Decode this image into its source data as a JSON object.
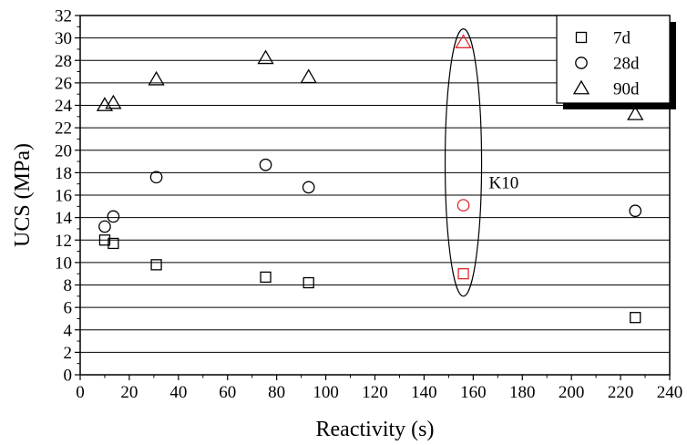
{
  "chart_data": {
    "type": "scatter",
    "xlabel": "Reactivity (s)",
    "ylabel": "UCS (MPa)",
    "xlim": [
      0,
      240
    ],
    "ylim": [
      0,
      32
    ],
    "xticks": [
      0,
      20,
      40,
      60,
      80,
      100,
      120,
      140,
      160,
      180,
      200,
      220,
      240
    ],
    "yticks": [
      0,
      2,
      4,
      6,
      8,
      10,
      12,
      14,
      16,
      18,
      20,
      22,
      24,
      26,
      28,
      30,
      32
    ],
    "grid": "horizontal",
    "legend_position": "top-right",
    "series": [
      {
        "name": "7d",
        "marker": "square",
        "points": [
          [
            10,
            12.0
          ],
          [
            13.5,
            11.7
          ],
          [
            31,
            9.8
          ],
          [
            75.5,
            8.7
          ],
          [
            93,
            8.2
          ],
          [
            156,
            9.0
          ],
          [
            226,
            5.1
          ]
        ]
      },
      {
        "name": "28d",
        "marker": "circle",
        "points": [
          [
            10,
            13.2
          ],
          [
            13.5,
            14.1
          ],
          [
            31,
            17.6
          ],
          [
            75.5,
            18.7
          ],
          [
            93,
            16.7
          ],
          [
            156,
            15.1
          ],
          [
            226,
            14.6
          ]
        ]
      },
      {
        "name": "90d",
        "marker": "triangle",
        "points": [
          [
            10,
            24.0
          ],
          [
            13.5,
            24.2
          ],
          [
            31,
            26.3
          ],
          [
            75.5,
            28.2
          ],
          [
            93,
            26.5
          ],
          [
            156,
            29.6
          ],
          [
            226,
            23.2
          ]
        ]
      }
    ],
    "highlight": {
      "label": "K10",
      "x": 156,
      "color": "#e0282a",
      "ellipse_y_range": [
        7.0,
        30.8
      ]
    }
  }
}
